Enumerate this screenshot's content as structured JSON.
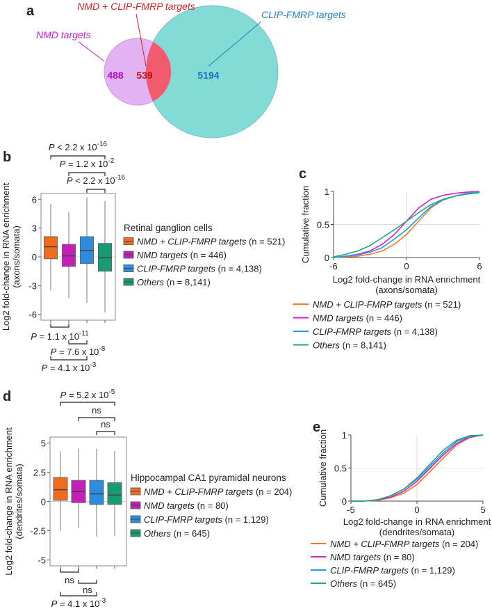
{
  "panels": {
    "a": "a",
    "b": "b",
    "c": "c",
    "d": "d",
    "e": "e"
  },
  "colors": {
    "orange": "#f26b1d",
    "magenta": "#c41fb8",
    "blue": "#2a8de0",
    "green": "#169b73",
    "venn_pink": "#e3b2f2",
    "venn_teal": "#82dbd4",
    "venn_red": "#f25a6e"
  },
  "venn": {
    "labels": {
      "nmd": "NMD targets",
      "both": "NMD + CLIP-FMRP targets",
      "clip": "CLIP-FMRP targets"
    },
    "counts": {
      "nmd_only": "488",
      "both": "539",
      "clip_only": "5194"
    }
  },
  "chart_data": [
    {
      "id": "b",
      "type": "box",
      "title": "Retinal ganglion cells",
      "ylabel": [
        "Log2 fold-change in RNA enrichment",
        "(axons/somata)"
      ],
      "ylim": [
        -6.6,
        6.6
      ],
      "yticks": [
        "6",
        "3",
        "0",
        "-3",
        "-6"
      ],
      "ytick_values": [
        6,
        3,
        0,
        -3,
        -6
      ],
      "series": [
        {
          "name": "NMD + CLIP-FMRP targets",
          "n": "(n = 521)",
          "color": "#f26b1d",
          "q1": -0.2,
          "median": 1.05,
          "q3": 2.1,
          "min": -3.5,
          "max": 5.5
        },
        {
          "name": "NMD targets",
          "n": "(n = 446)",
          "color": "#c41fb8",
          "q1": -1.0,
          "median": 0.1,
          "q3": 1.3,
          "min": -4.3,
          "max": 4.7
        },
        {
          "name": "CLIP-FMRP targets",
          "n": "(n = 4,138)",
          "color": "#2a8de0",
          "q1": -0.7,
          "median": 0.65,
          "q3": 2.1,
          "min": -4.8,
          "max": 6.2
        },
        {
          "name": "Others",
          "n": "(n = 8,141)",
          "color": "#169b73",
          "q1": -1.5,
          "median": -0.1,
          "q3": 1.4,
          "min": -5.8,
          "max": 5.8
        }
      ],
      "top_annotations": [
        {
          "from": 0,
          "to": 3,
          "p": "P",
          "text": " < 2.2 x 10",
          "exp": "-16"
        },
        {
          "from": 1,
          "to": 3,
          "p": "P",
          "text": " = 1.2 x 10",
          "exp": "-2"
        },
        {
          "from": 2,
          "to": 3,
          "p": "P",
          "text": " < 2.2 x 10",
          "exp": "-16"
        }
      ],
      "bottom_annotations": [
        {
          "from": 0,
          "to": 1,
          "p": "P",
          "text": " = 1.1 x 10",
          "exp": "-11"
        },
        {
          "from": 1,
          "to": 2,
          "p": "P",
          "text": " = 7.6 x 10",
          "exp": "-8"
        },
        {
          "from": 0,
          "to": 2,
          "p": "P",
          "text": " = 4.1 x 10",
          "exp": "-3"
        }
      ]
    },
    {
      "id": "c",
      "type": "line",
      "ylabel": "Cumulative fraction",
      "xlabel": [
        "Log2 fold-change in RNA enrichment",
        "(axons/somata)"
      ],
      "xlim": [
        -6,
        6
      ],
      "ylim": [
        0,
        1
      ],
      "xticks": [
        "-6",
        "0",
        "6"
      ],
      "xtick_values": [
        -6,
        0,
        6
      ],
      "yticks": [
        "0",
        "0.5",
        "1"
      ],
      "ytick_values": [
        0,
        0.5,
        1
      ],
      "x": [
        -6,
        -5,
        -4,
        -3,
        -2,
        -1,
        0,
        1,
        2,
        3,
        4,
        5,
        6
      ],
      "series": [
        {
          "name": "NMD + CLIP-FMRP targets",
          "n": "(n = 521)",
          "color": "#f47a20",
          "values": [
            0,
            0.01,
            0.02,
            0.05,
            0.1,
            0.2,
            0.35,
            0.55,
            0.75,
            0.87,
            0.93,
            0.97,
            0.99
          ]
        },
        {
          "name": "NMD targets",
          "n": "(n = 446)",
          "color": "#d41ecf",
          "values": [
            0,
            0.02,
            0.05,
            0.1,
            0.2,
            0.35,
            0.55,
            0.75,
            0.88,
            0.94,
            0.97,
            0.99,
            1
          ]
        },
        {
          "name": "CLIP-FMRP targets",
          "n": "(n = 4,138)",
          "color": "#1e9bf0",
          "values": [
            0,
            0.02,
            0.04,
            0.08,
            0.15,
            0.28,
            0.42,
            0.6,
            0.77,
            0.87,
            0.93,
            0.97,
            0.99
          ]
        },
        {
          "name": "Others",
          "n": "(n = 8,141)",
          "color": "#20a87a",
          "values": [
            0.01,
            0.05,
            0.1,
            0.18,
            0.3,
            0.42,
            0.55,
            0.68,
            0.8,
            0.88,
            0.93,
            0.96,
            0.98
          ]
        }
      ]
    },
    {
      "id": "d",
      "type": "box",
      "title": "Hippocampal CA1 pyramidal neurons",
      "ylabel": [
        "Log2 fold-change in RNA enrichment",
        "(dendrites/somata)"
      ],
      "ylim": [
        -5.5,
        5.5
      ],
      "yticks": [
        "5",
        "2.5",
        "0",
        "-2.5",
        "-5"
      ],
      "ytick_values": [
        5,
        2.5,
        0,
        -2.5,
        -5
      ],
      "series": [
        {
          "name": "NMD + CLIP-FMRP targets",
          "n": "(n = 204)",
          "color": "#f26b1d",
          "q1": 0.1,
          "median": 1.0,
          "q3": 2.05,
          "min": -2.5,
          "max": 4.3
        },
        {
          "name": "NMD targets",
          "n": "(n = 80)",
          "color": "#c41fb8",
          "q1": -0.1,
          "median": 0.85,
          "q3": 1.8,
          "min": -2.3,
          "max": 4.5
        },
        {
          "name": "CLIP-FMRP targets",
          "n": "(n = 1,129)",
          "color": "#2a8de0",
          "q1": -0.25,
          "median": 0.65,
          "q3": 1.8,
          "min": -3.0,
          "max": 4.5
        },
        {
          "name": "Others",
          "n": "(n = 645)",
          "color": "#169b73",
          "q1": -0.25,
          "median": 0.55,
          "q3": 1.6,
          "min": -2.95,
          "max": 4.3
        }
      ],
      "top_annotations": [
        {
          "from": 0,
          "to": 3,
          "p": "P",
          "text": " = 5.2 x 10",
          "exp": "-5"
        },
        {
          "from": 1,
          "to": 3,
          "p": "",
          "text": "ns",
          "exp": ""
        },
        {
          "from": 2,
          "to": 3,
          "p": "",
          "text": "ns",
          "exp": ""
        }
      ],
      "bottom_annotations": [
        {
          "from": 0,
          "to": 1,
          "p": "",
          "text": "ns",
          "exp": ""
        },
        {
          "from": 1,
          "to": 2,
          "p": "",
          "text": "ns",
          "exp": ""
        },
        {
          "from": 0,
          "to": 2,
          "p": "P",
          "text": " = 4.1 x 10",
          "exp": "-3"
        }
      ]
    },
    {
      "id": "e",
      "type": "line",
      "ylabel": "Cumulative fraction",
      "xlabel": [
        "Log2 fold-change in RNA enrichment",
        "(dendrites/somata)"
      ],
      "xlim": [
        -5,
        5
      ],
      "ylim": [
        0,
        1
      ],
      "xticks": [
        "-5",
        "0",
        "5"
      ],
      "xtick_values": [
        -5,
        0,
        5
      ],
      "yticks": [
        "0",
        "0.5",
        "1"
      ],
      "ytick_values": [
        0,
        0.5,
        1
      ],
      "x": [
        -5,
        -4,
        -3,
        -2,
        -1,
        0,
        1,
        2,
        3,
        4,
        5
      ],
      "series": [
        {
          "name": "NMD + CLIP-FMRP targets",
          "n": "(n = 204)",
          "color": "#f47a20",
          "values": [
            0,
            0,
            0.01,
            0.05,
            0.12,
            0.25,
            0.45,
            0.65,
            0.85,
            0.96,
            1
          ]
        },
        {
          "name": "NMD targets",
          "n": "(n = 80)",
          "color": "#d41ecf",
          "values": [
            0,
            0,
            0.02,
            0.06,
            0.15,
            0.3,
            0.5,
            0.7,
            0.87,
            0.97,
            1
          ]
        },
        {
          "name": "CLIP-FMRP targets",
          "n": "(n = 1,129)",
          "color": "#1e9bf0",
          "values": [
            0,
            0,
            0.02,
            0.08,
            0.18,
            0.33,
            0.53,
            0.73,
            0.9,
            0.98,
            1
          ]
        },
        {
          "name": "Others",
          "n": "(n = 645)",
          "color": "#20a87a",
          "values": [
            0,
            0,
            0.02,
            0.08,
            0.18,
            0.35,
            0.56,
            0.77,
            0.92,
            0.99,
            1
          ]
        }
      ]
    }
  ]
}
